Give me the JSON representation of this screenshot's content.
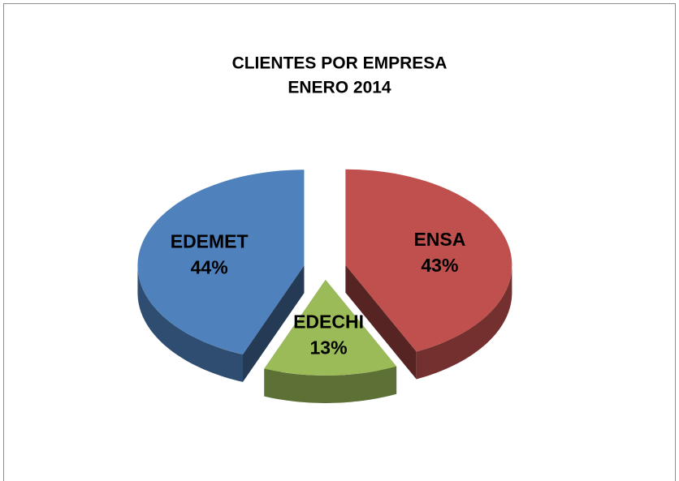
{
  "chart_data": {
    "type": "pie3d",
    "title": "CLIENTES POR EMPRESA",
    "subtitle": "ENERO  2014",
    "categories": [
      "ENSA",
      "EDECHI",
      "EDEMET"
    ],
    "values": [
      43,
      13,
      44
    ],
    "value_labels": [
      "43%",
      "13%",
      "44%"
    ],
    "colors": [
      "#c0504d",
      "#9bbb59",
      "#4f81bd"
    ],
    "exploded": true
  }
}
